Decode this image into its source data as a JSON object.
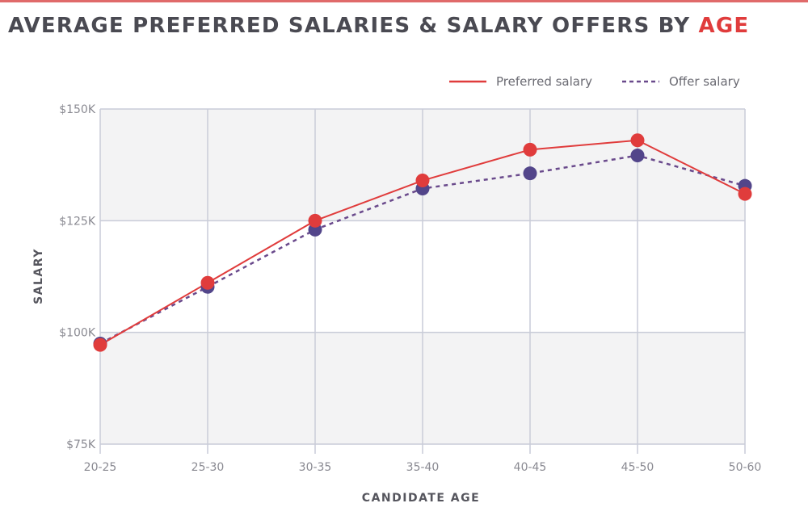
{
  "chart_data": {
    "type": "line",
    "title_main": "AVERAGE PREFERRED SALARIES & SALARY OFFERS BY ",
    "title_accent": "AGE",
    "xlabel": "CANDIDATE AGE",
    "ylabel": "SALARY",
    "categories": [
      "20-25",
      "25-30",
      "30-35",
      "35-40",
      "40-45",
      "45-50",
      "50-60"
    ],
    "ylim": [
      75,
      150
    ],
    "yticks": [
      {
        "value": 150,
        "label": "$150K"
      },
      {
        "value": 125,
        "label": "$125K"
      },
      {
        "value": 100,
        "label": "$100K"
      },
      {
        "value": 75,
        "label": "$75K"
      }
    ],
    "grid": true,
    "legend_position": "top-right",
    "series": [
      {
        "name": "Offer salary",
        "style": "dashed",
        "line_color": "#6a4a8c",
        "marker_color": "#52458a",
        "values": [
          97.5,
          110.2,
          123.0,
          132.2,
          135.6,
          139.6,
          132.8
        ]
      },
      {
        "name": "Preferred salary",
        "style": "solid",
        "line_color": "#e03c3c",
        "marker_color": "#e03c3c",
        "values": [
          97.2,
          111.1,
          125.0,
          134.0,
          140.9,
          143.0,
          131.0
        ]
      }
    ],
    "unit": "thousands USD"
  },
  "colors": {
    "accent": "#e03c3c",
    "band": "#f3f3f4",
    "grid": "#c9ccd8"
  }
}
